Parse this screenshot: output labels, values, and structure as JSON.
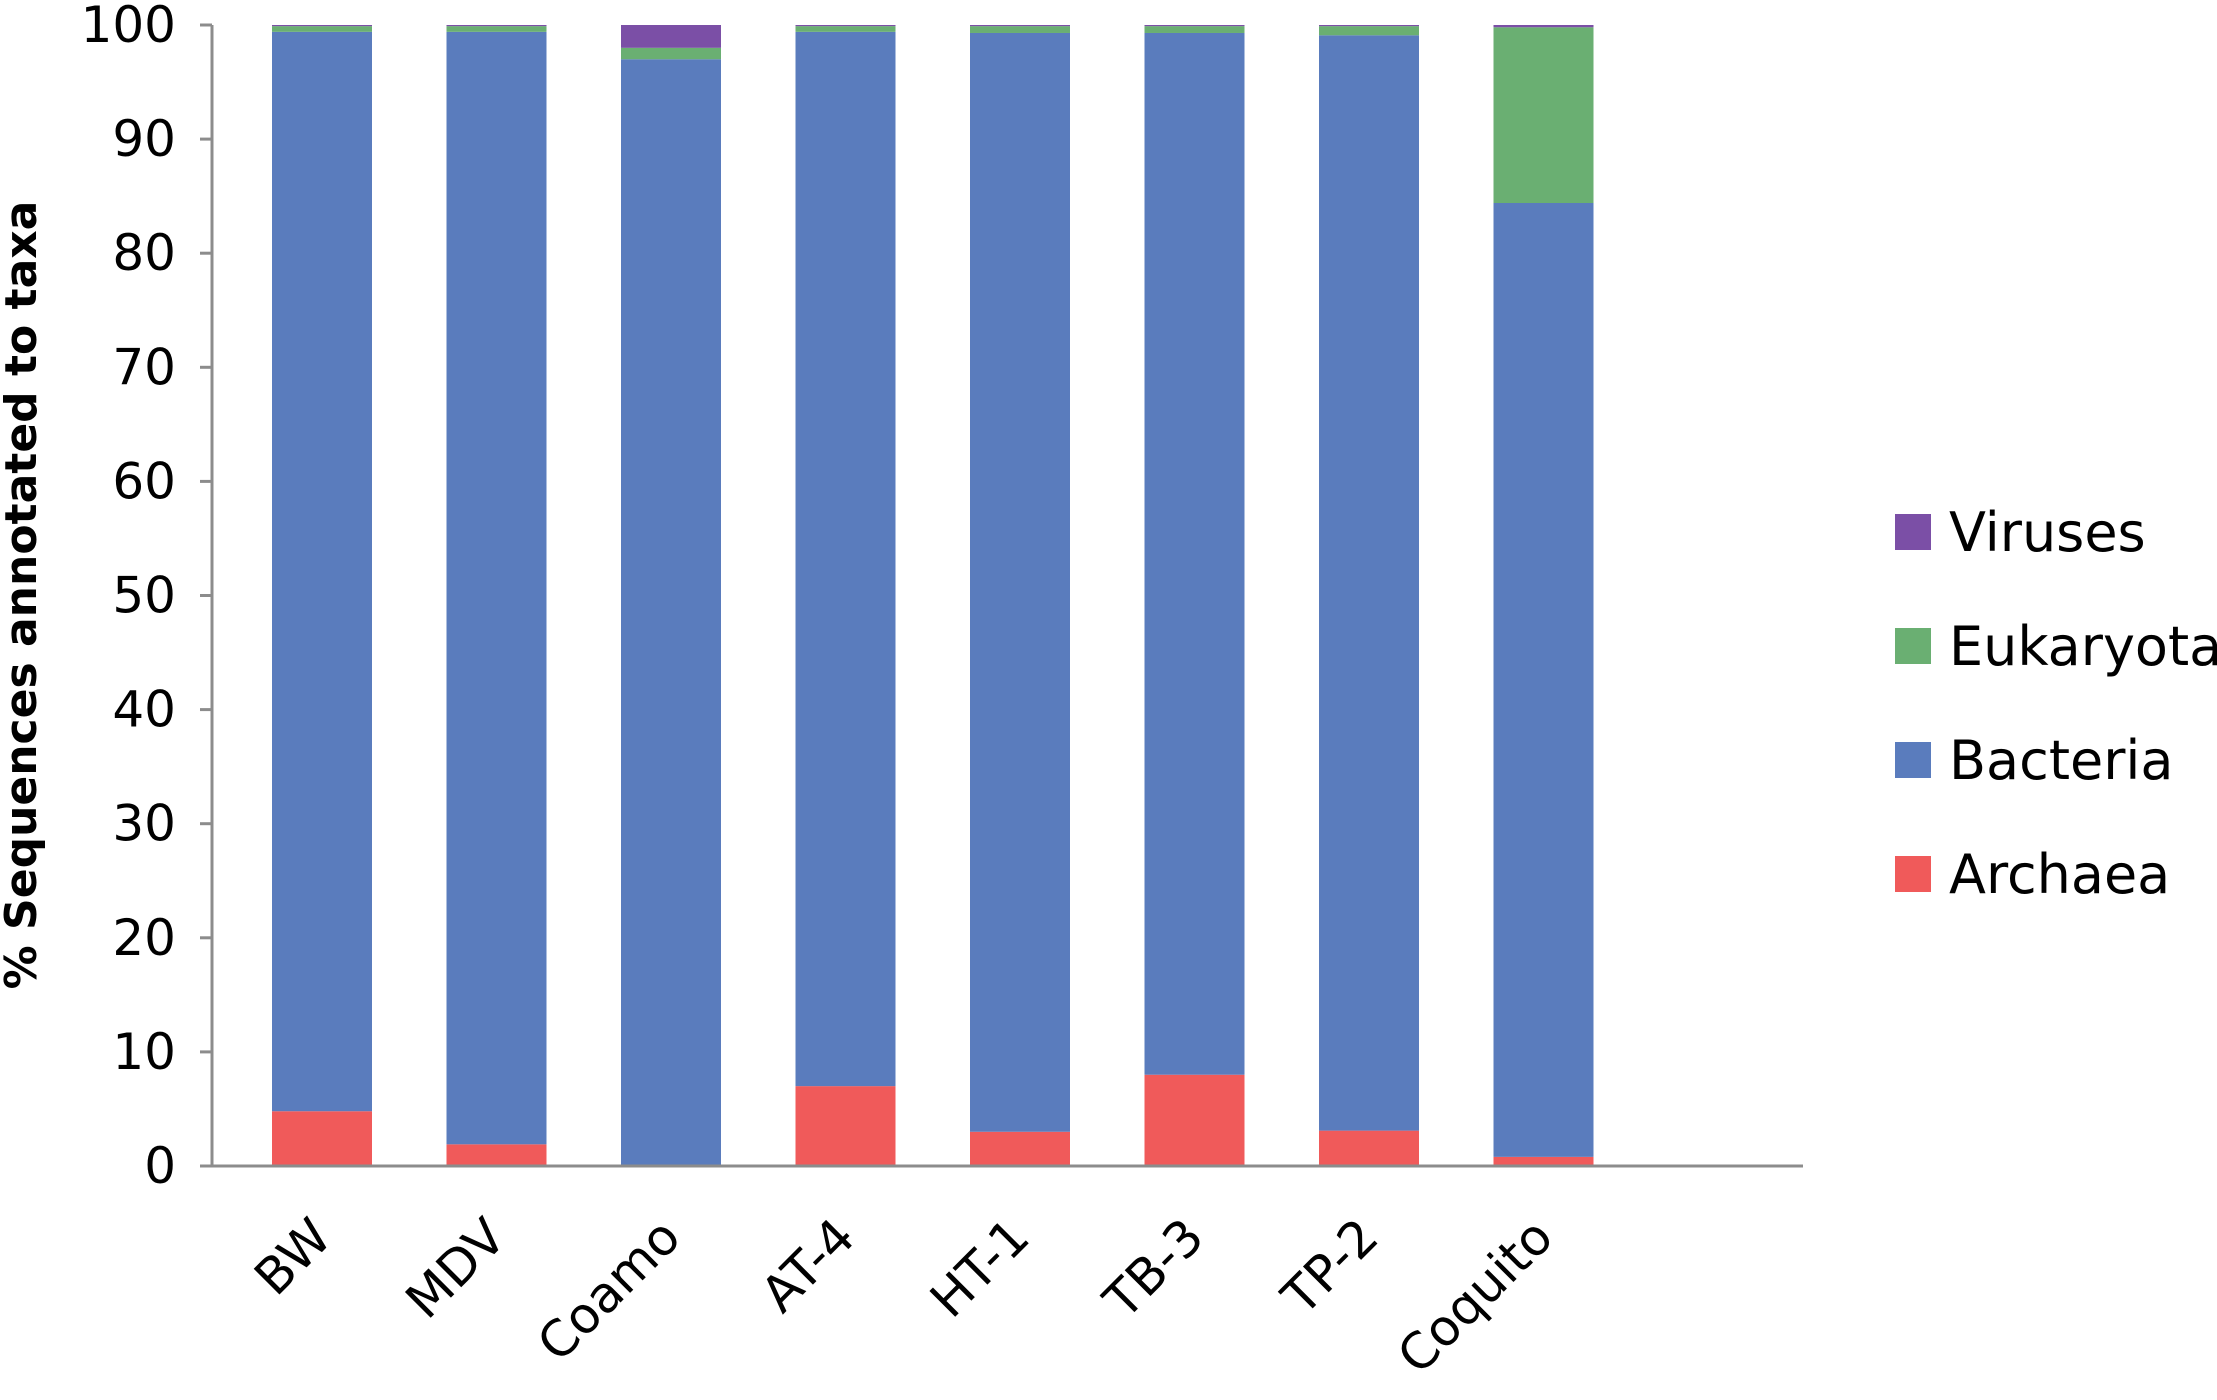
{
  "chart_data": {
    "type": "bar",
    "stacked": true,
    "title": "",
    "xlabel": "",
    "ylabel": "% Sequences annotated to taxa",
    "ylim": [
      0,
      100
    ],
    "yticks": [
      0,
      10,
      20,
      30,
      40,
      50,
      60,
      70,
      80,
      90,
      100
    ],
    "grid": false,
    "legend_position": "right",
    "categories": [
      "BW",
      "MDV",
      "Coamo",
      "AT-4",
      "HT-1",
      "TB-3",
      "TP-2",
      "Coquito"
    ],
    "series": [
      {
        "name": "Archaea",
        "color": "#f05a5a",
        "values": [
          4.8,
          1.9,
          0.1,
          7.0,
          3.0,
          8.0,
          3.1,
          0.8
        ]
      },
      {
        "name": "Bacteria",
        "color": "#5a7cbd",
        "values": [
          94.6,
          97.5,
          96.9,
          92.4,
          96.3,
          91.3,
          96.0,
          83.6
        ]
      },
      {
        "name": "Eukaryota",
        "color": "#6aaf72",
        "values": [
          0.5,
          0.5,
          1.0,
          0.5,
          0.6,
          0.6,
          0.8,
          15.4
        ]
      },
      {
        "name": "Viruses",
        "color": "#7b4fa6",
        "values": [
          0.1,
          0.1,
          2.0,
          0.1,
          0.1,
          0.1,
          0.1,
          0.2
        ]
      }
    ],
    "legend_order": [
      "Viruses",
      "Eukaryota",
      "Bacteria",
      "Archaea"
    ]
  }
}
